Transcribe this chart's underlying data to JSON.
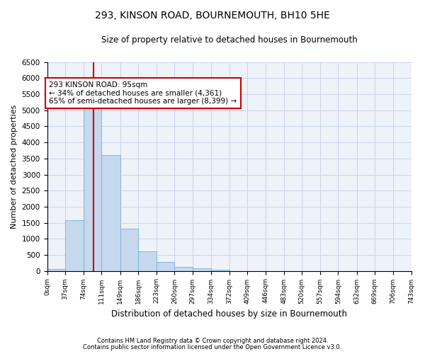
{
  "title": "293, KINSON ROAD, BOURNEMOUTH, BH10 5HE",
  "subtitle": "Size of property relative to detached houses in Bournemouth",
  "xlabel": "Distribution of detached houses by size in Bournemouth",
  "ylabel": "Number of detached properties",
  "footer_line1": "Contains HM Land Registry data © Crown copyright and database right 2024.",
  "footer_line2": "Contains public sector information licensed under the Open Government Licence v3.0.",
  "bar_color": "#c5d8ee",
  "bar_edge_color": "#7bafd4",
  "grid_color": "#c8d4e8",
  "background_color": "#eef2f9",
  "vline_color": "#cc0000",
  "vline_x": 95,
  "annotation_text": "293 KINSON ROAD: 95sqm\n← 34% of detached houses are smaller (4,361)\n65% of semi-detached houses are larger (8,399) →",
  "annotation_box_color": "#cc0000",
  "bin_edges": [
    0,
    37,
    74,
    111,
    149,
    186,
    223,
    260,
    297,
    334,
    372,
    409,
    446,
    483,
    520,
    557,
    594,
    632,
    669,
    706,
    743
  ],
  "bin_labels": [
    "0sqm",
    "37sqm",
    "74sqm",
    "111sqm",
    "149sqm",
    "186sqm",
    "223sqm",
    "260sqm",
    "297sqm",
    "334sqm",
    "372sqm",
    "409sqm",
    "446sqm",
    "483sqm",
    "520sqm",
    "557sqm",
    "594sqm",
    "632sqm",
    "669sqm",
    "706sqm",
    "743sqm"
  ],
  "bar_heights": [
    50,
    1580,
    5080,
    3600,
    1320,
    600,
    270,
    130,
    75,
    30,
    0,
    0,
    0,
    0,
    0,
    0,
    0,
    0,
    0,
    0
  ],
  "ylim": [
    0,
    6500
  ],
  "yticks": [
    0,
    500,
    1000,
    1500,
    2000,
    2500,
    3000,
    3500,
    4000,
    4500,
    5000,
    5500,
    6000,
    6500
  ]
}
